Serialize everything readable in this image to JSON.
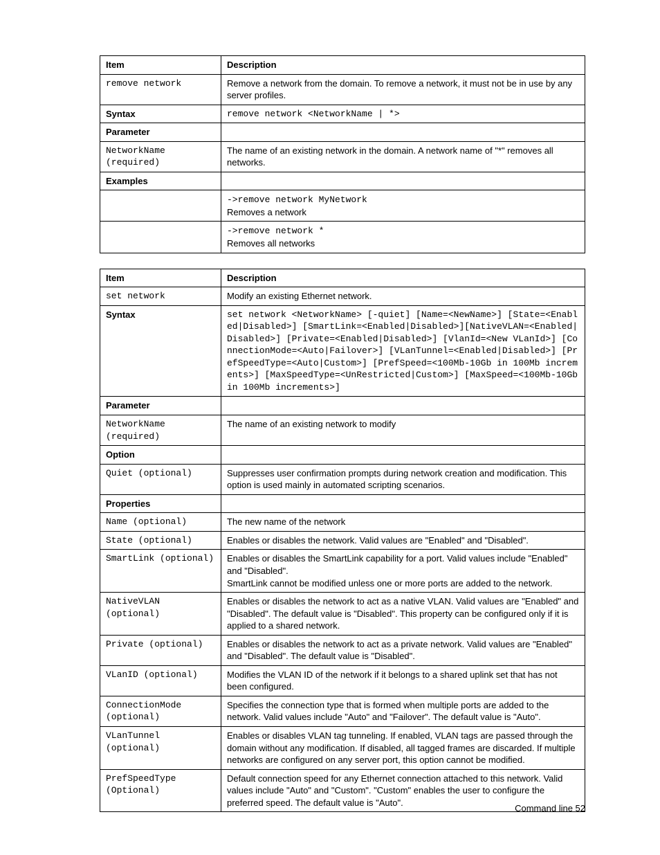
{
  "page": {
    "footer": "Command line 52"
  },
  "table1": {
    "headers": {
      "c1": "Item",
      "c2": "Description"
    },
    "r1": {
      "c1": "remove network",
      "c2": "Remove a network from the domain. To remove a network, it must not be in use by any server profiles."
    },
    "syntax_label": "Syntax",
    "syntax_value": "remove network <NetworkName | *>",
    "parameter_label": "Parameter",
    "p1": {
      "c1": "NetworkName (required)",
      "c2": "The name of an existing network in the domain. A network name of \"*\" removes all networks."
    },
    "examples_label": "Examples",
    "ex1": {
      "cmd": "->remove network MyNetwork",
      "desc": "Removes a network"
    },
    "ex2": {
      "cmd": "->remove network *",
      "desc": "Removes all networks"
    }
  },
  "table2": {
    "headers": {
      "c1": "Item",
      "c2": "Description"
    },
    "r1": {
      "c1": "set network",
      "c2": "Modify an existing Ethernet network."
    },
    "syntax_label": "Syntax",
    "syntax_value": "set network <NetworkName> [-quiet] [Name=<NewName>] [State=<Enabled|Disabled>] [SmartLink=<Enabled|Disabled>][NativeVLAN=<Enabled|Disabled>] [Private=<Enabled|Disabled>] [VlanId=<New VLanId>] [ConnectionMode=<Auto|Failover>] [VLanTunnel=<Enabled|Disabled>] [PrefSpeedType=<Auto|Custom>] [PrefSpeed=<100Mb-10Gb in 100Mb increments>] [MaxSpeedType=<UnRestricted|Custom>] [MaxSpeed=<100Mb-10Gb in 100Mb increments>]",
    "parameter_label": "Parameter",
    "p1": {
      "c1": "NetworkName (required)",
      "c2": "The name of an existing network to modify"
    },
    "option_label": "Option",
    "o1": {
      "c1": "Quiet (optional)",
      "c2": "Suppresses user confirmation prompts during network creation and modification. This option is used mainly in automated scripting scenarios."
    },
    "properties_label": "Properties",
    "pr1": {
      "c1": "Name (optional)",
      "c2": "The new name of the network"
    },
    "pr2": {
      "c1": "State (optional)",
      "c2": "Enables or disables the network. Valid values are \"Enabled\" and \"Disabled\"."
    },
    "pr3": {
      "c1": "SmartLink (optional)",
      "c2": "Enables or disables the SmartLink capability for a port. Valid values include \"Enabled\" and \"Disabled\".\nSmartLink cannot be modified unless one or more ports are added to the network."
    },
    "pr4": {
      "c1": "NativeVLAN (optional)",
      "c2": "Enables or disables the network to act as a native VLAN. Valid values are \"Enabled\" and \"Disabled\". The default value is \"Disabled\". This property can be configured only if it is applied to a shared network."
    },
    "pr5": {
      "c1": "Private (optional)",
      "c2": "Enables or disables the network to act as a private network. Valid values are \"Enabled\" and \"Disabled\". The default value is \"Disabled\"."
    },
    "pr6": {
      "c1": "VLanID (optional)",
      "c2": "Modifies the VLAN ID of the network if it belongs to a shared uplink set that has not been configured."
    },
    "pr7": {
      "c1": "ConnectionMode (optional)",
      "c2": "Specifies the connection type that is formed when multiple ports are added to the network. Valid values include \"Auto\" and \"Failover\". The default value is \"Auto\"."
    },
    "pr8": {
      "c1": "VLanTunnel (optional)",
      "c2": "Enables or disables VLAN tag tunneling. If enabled, VLAN tags are passed through the domain without any modification. If disabled, all tagged frames are discarded. If multiple networks are configured on any server port, this option cannot be modified."
    },
    "pr9": {
      "c1": "PrefSpeedType (Optional)",
      "c2": "Default connection speed for any Ethernet connection attached to this network. Valid values include \"Auto\" and \"Custom\". \"Custom\" enables the user to configure the preferred speed. The default value is \"Auto\"."
    }
  }
}
